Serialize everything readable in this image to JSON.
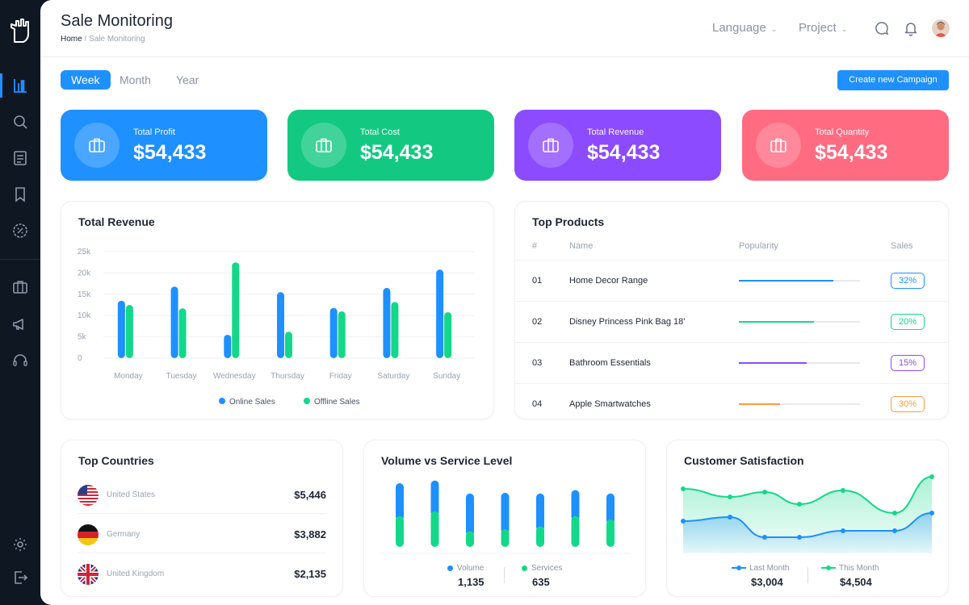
{
  "header": {
    "title": "Sale Monitoring",
    "breadcrumb_home": "Home",
    "breadcrumb_sep": "/",
    "breadcrumb_current": "Sale Monitoring",
    "language_label": "Language",
    "project_label": "Project"
  },
  "tabs": [
    {
      "label": "Week",
      "active": true
    },
    {
      "label": "Month",
      "active": false
    },
    {
      "label": "Year",
      "active": false
    }
  ],
  "create_campaign_label": "Create new Campaign",
  "stats": [
    {
      "label": "Total Profit",
      "value": "$54,433",
      "color": "#1e90ff"
    },
    {
      "label": "Total Cost",
      "value": "$54,433",
      "color": "#13c982"
    },
    {
      "label": "Total Revenue",
      "value": "$54,433",
      "color": "#8c4bff"
    },
    {
      "label": "Total Quantity",
      "value": "$54,433",
      "color": "#ff6b81"
    }
  ],
  "revenue_panel": {
    "title": "Total Revenue"
  },
  "chart_data": {
    "type": "bar",
    "title": "Total Revenue",
    "categories": [
      "Monday",
      "Tuesday",
      "Wednesday",
      "Thursday",
      "Friday",
      "Saturday",
      "Sunday"
    ],
    "series": [
      {
        "name": "Online Sales",
        "color": "#1e90ff",
        "values": [
          13500,
          16800,
          5500,
          15500,
          11800,
          16500,
          20800
        ]
      },
      {
        "name": "Offline Sales",
        "color": "#13d88a",
        "values": [
          12500,
          11700,
          22500,
          6200,
          11000,
          13200,
          10800
        ]
      }
    ],
    "yticks": [
      "0",
      "5k",
      "10k",
      "15k",
      "20k",
      "25k"
    ],
    "ylim": [
      0,
      25000
    ],
    "grid": true,
    "legend": "bottom"
  },
  "top_products": {
    "title": "Top Products",
    "headers": {
      "num": "#",
      "name": "Name",
      "popularity": "Popularity",
      "sales": "Sales"
    },
    "rows": [
      {
        "num": "01",
        "name": "Home Decor Range",
        "popularity": 0.78,
        "sales": "32%",
        "color": "#1e90ff"
      },
      {
        "num": "02",
        "name": "Disney Princess Pink Bag 18'",
        "popularity": 0.62,
        "sales": "20%",
        "color": "#13d88a"
      },
      {
        "num": "03",
        "name": "Bathroom Essentials",
        "popularity": 0.56,
        "sales": "15%",
        "color": "#8c4bff"
      },
      {
        "num": "04",
        "name": "Apple Smartwatches",
        "popularity": 0.34,
        "sales": "30%",
        "color": "#ff9a3c"
      }
    ]
  },
  "top_countries": {
    "title": "Top Countries",
    "rows": [
      {
        "name": "United States",
        "value": "$5,446",
        "flag": "us-flag-icon"
      },
      {
        "name": "Germany",
        "value": "$3,882",
        "flag": "de-flag-icon"
      },
      {
        "name": "United Kingdom",
        "value": "$2,135",
        "flag": "uk-flag-icon"
      }
    ]
  },
  "volume_service": {
    "title": "Volume vs Service Level",
    "volume_label": "Volume",
    "volume_value": "1,135",
    "services_label": "Services",
    "services_value": "635",
    "volume_color": "#1e90ff",
    "services_color": "#13d88a",
    "bars": [
      {
        "volume": 0.55,
        "services": 0.45
      },
      {
        "volume": 0.52,
        "services": 0.52
      },
      {
        "volume": 0.62,
        "services": 0.23
      },
      {
        "volume": 0.6,
        "services": 0.26
      },
      {
        "volume": 0.55,
        "services": 0.3
      },
      {
        "volume": 0.45,
        "services": 0.45
      },
      {
        "volume": 0.45,
        "services": 0.4
      }
    ]
  },
  "customer_satisfaction": {
    "title": "Customer Satisfaction",
    "last_month_label": "Last Month",
    "last_month_value": "$3,004",
    "this_month_label": "This Month",
    "this_month_value": "$4,504",
    "last_month_color": "#1e90ff",
    "this_month_color": "#13d88a",
    "last_month_points": [
      0.4,
      0.45,
      0.2,
      0.2,
      0.28,
      0.28,
      0.5
    ],
    "this_month_points": [
      0.8,
      0.7,
      0.76,
      0.61,
      0.78,
      0.5,
      0.95
    ]
  },
  "icons": {
    "sidebar": [
      "analytics-icon",
      "search-icon",
      "document-icon",
      "bookmark-icon",
      "discount-icon",
      "briefcase-icon",
      "megaphone-icon",
      "headset-icon",
      "gear-icon",
      "logout-icon"
    ],
    "topbar": [
      "chat-icon",
      "bell-icon"
    ],
    "stats": "briefcase-icon"
  }
}
